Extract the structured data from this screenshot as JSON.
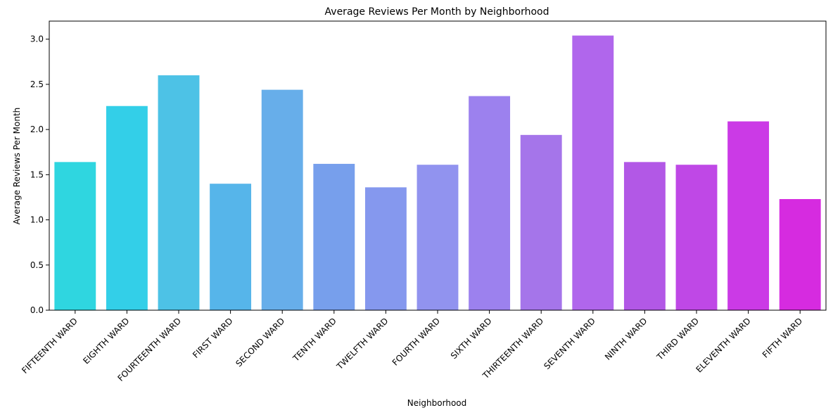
{
  "chart_data": {
    "type": "bar",
    "title": "Average Reviews Per Month by Neighborhood",
    "xlabel": "Neighborhood",
    "ylabel": "Average Reviews Per Month",
    "ylim": [
      0,
      3.2
    ],
    "yticks": [
      "0.0",
      "0.5",
      "1.0",
      "1.5",
      "2.0",
      "2.5",
      "3.0"
    ],
    "ytick_values": [
      0,
      0.5,
      1.0,
      1.5,
      2.0,
      2.5,
      3.0
    ],
    "categories": [
      "FIFTEENTH WARD",
      "EIGHTH WARD",
      "FOURTEENTH WARD",
      "FIRST WARD",
      "SECOND WARD",
      "TENTH WARD",
      "TWELFTH WARD",
      "FOURTH WARD",
      "SIXTH WARD",
      "THIRTEENTH WARD",
      "SEVENTH WARD",
      "NINTH WARD",
      "THIRD WARD",
      "ELEVENTH WARD",
      "FIFTH WARD"
    ],
    "values": [
      1.64,
      2.26,
      2.6,
      1.4,
      2.44,
      1.62,
      1.36,
      1.61,
      2.37,
      1.94,
      3.04,
      1.64,
      1.61,
      2.09,
      1.23
    ],
    "colors": [
      "#2fd6e0",
      "#33cfe8",
      "#4dc2e6",
      "#56b5ea",
      "#67aeea",
      "#779fec",
      "#8598ee",
      "#9193ef",
      "#9c81ee",
      "#a575ea",
      "#b066ec",
      "#b258e6",
      "#bf48e6",
      "#cb3ae6",
      "#d62be0"
    ],
    "grid": false,
    "legend": "none"
  }
}
